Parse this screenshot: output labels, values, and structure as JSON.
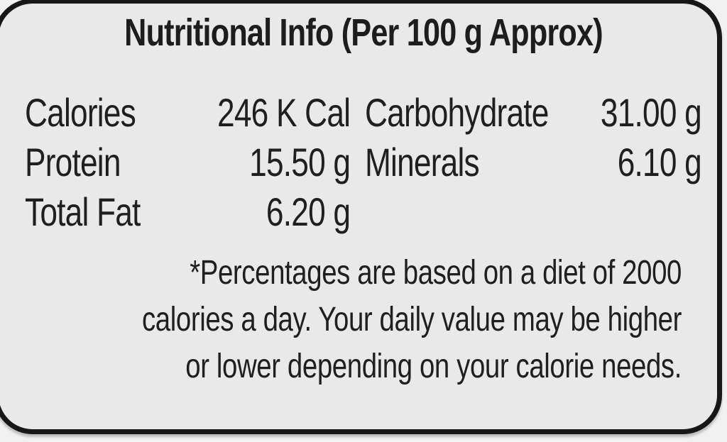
{
  "label": {
    "title": "Nutritional Info (Per 100 g Approx)",
    "nutrients_left": [
      {
        "name": "Calories",
        "value": "246 K Cal"
      },
      {
        "name": "Protein",
        "value": "15.50 g"
      },
      {
        "name": "Total Fat",
        "value": "6.20 g"
      }
    ],
    "nutrients_right": [
      {
        "name": "Carbohydrate",
        "value": "31.00 g"
      },
      {
        "name": "Minerals",
        "value": "6.10 g"
      }
    ],
    "footnote_lines": [
      "*Percentages are based on a diet of 2000",
      "calories a day. Your daily value may be higher",
      "or lower depending on your calorie needs."
    ],
    "colors": {
      "panel_background": "#e9e9e9",
      "page_background": "#f1f1f1",
      "border": "#171717",
      "text": "#1f1f1f"
    }
  }
}
